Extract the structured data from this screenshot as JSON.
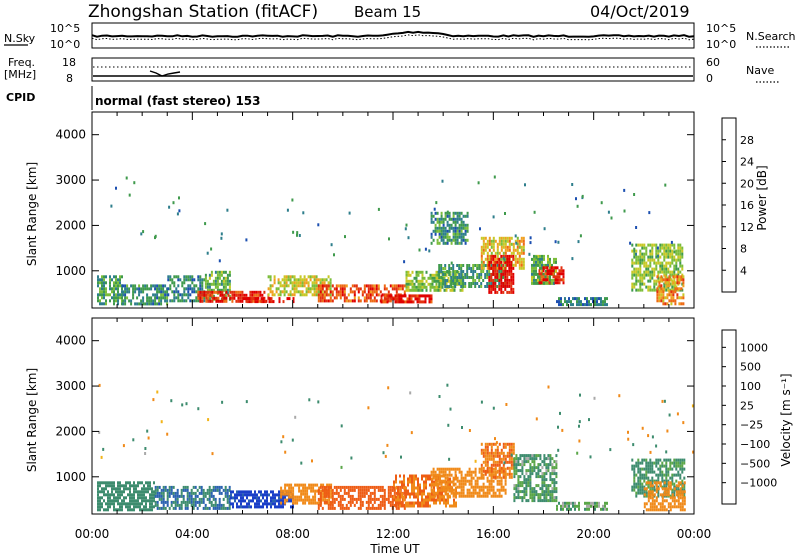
{
  "header": {
    "station": "Zhongshan Station (fitACF)",
    "beam": "Beam 15",
    "date": "04/Oct/2019"
  },
  "strips": {
    "nsky_label": "N.Sky",
    "nsky_ticks": [
      "10^5",
      "10^0"
    ],
    "nsearch_label": "N.Search",
    "freq_label_1": "Freq.",
    "freq_label_2": "[MHz]",
    "freq_ticks": [
      "18",
      "8"
    ],
    "nave_label": "Nave",
    "nave_ticks": [
      "60",
      "0"
    ],
    "cpid_label": "CPID",
    "cpid_text": "normal (fast stereo) 153"
  },
  "colors": {
    "power_scale": [
      "#1010ee",
      "#1c4fb0",
      "#2e7e8c",
      "#3f9a4c",
      "#7bbd3a",
      "#c8c826",
      "#f0a020",
      "#ee6a14",
      "#e23010",
      "#e00000"
    ],
    "velocity_scale": [
      "#1a3fc8",
      "#2a62b0",
      "#3d8c6e",
      "#5aa648",
      "#a9a9a9",
      "#f2b418",
      "#f08a1a",
      "#ee5c14",
      "#e02a0c"
    ]
  },
  "chart_data": [
    {
      "type": "heatmap",
      "name": "power",
      "xlabel": "Time UT",
      "ylabel": "Slant Range [km]",
      "x_ticks": [
        "00:00",
        "04:00",
        "08:00",
        "12:00",
        "16:00",
        "20:00",
        "00:00"
      ],
      "y_ticks": [
        1000,
        2000,
        3000,
        4000
      ],
      "ylim": [
        180,
        4500
      ],
      "colorbar_label": "Power [dB]",
      "colorbar_ticks": [
        28,
        24,
        20,
        16,
        12,
        8,
        4
      ],
      "colorbar_range": [
        0,
        30
      ],
      "patches": [
        {
          "t": [
            0.2,
            1.2
          ],
          "r": [
            300,
            900
          ],
          "v": 10
        },
        {
          "t": [
            1.2,
            3.0
          ],
          "r": [
            300,
            700
          ],
          "v": 9
        },
        {
          "t": [
            3.0,
            4.5
          ],
          "r": [
            320,
            900
          ],
          "v": 8
        },
        {
          "t": [
            4.5,
            5.5
          ],
          "r": [
            350,
            1000
          ],
          "v": 12
        },
        {
          "t": [
            4.2,
            7.0
          ],
          "r": [
            300,
            560
          ],
          "v": 26
        },
        {
          "t": [
            6.0,
            8.0
          ],
          "r": [
            300,
            420
          ],
          "v": 28
        },
        {
          "t": [
            7.0,
            9.5
          ],
          "r": [
            480,
            900
          ],
          "v": 16
        },
        {
          "t": [
            9.0,
            12.5
          ],
          "r": [
            330,
            700
          ],
          "v": 24
        },
        {
          "t": [
            11.5,
            13.5
          ],
          "r": [
            300,
            480
          ],
          "v": 27
        },
        {
          "t": [
            12.5,
            14.8
          ],
          "r": [
            600,
            1000
          ],
          "v": 14
        },
        {
          "t": [
            13.8,
            16.5
          ],
          "r": [
            650,
            1150
          ],
          "v": 10
        },
        {
          "t": [
            13.5,
            15.0
          ],
          "r": [
            1600,
            2300
          ],
          "v": 9
        },
        {
          "t": [
            15.5,
            17.2
          ],
          "r": [
            1050,
            1750
          ],
          "v": 18
        },
        {
          "t": [
            15.8,
            16.8
          ],
          "r": [
            550,
            1350
          ],
          "v": 29
        },
        {
          "t": [
            17.5,
            18.5
          ],
          "r": [
            700,
            1350
          ],
          "v": 12
        },
        {
          "t": [
            17.8,
            18.8
          ],
          "r": [
            750,
            1100
          ],
          "v": 27
        },
        {
          "t": [
            18.5,
            20.5
          ],
          "r": [
            280,
            420
          ],
          "v": 8
        },
        {
          "t": [
            21.5,
            23.5
          ],
          "r": [
            550,
            1600
          ],
          "v": 14
        },
        {
          "t": [
            22.5,
            23.6
          ],
          "r": [
            300,
            900
          ],
          "v": 21
        }
      ]
    },
    {
      "type": "heatmap",
      "name": "velocity",
      "xlabel": "Time UT",
      "ylabel": "Slant Range [km]",
      "x_ticks": [
        "00:00",
        "04:00",
        "08:00",
        "12:00",
        "16:00",
        "20:00",
        "00:00"
      ],
      "y_ticks": [
        1000,
        2000,
        3000,
        4000
      ],
      "ylim": [
        180,
        4500
      ],
      "colorbar_label": "Velocity [m s⁻¹]",
      "colorbar_ticks": [
        "1000",
        "500",
        "100",
        "25",
        "−25",
        "−100",
        "−500",
        "−1000"
      ],
      "patches": [
        {
          "t": [
            0.2,
            2.5
          ],
          "r": [
            300,
            900
          ],
          "v": 100
        },
        {
          "t": [
            2.5,
            5.5
          ],
          "r": [
            300,
            800
          ],
          "v": 300
        },
        {
          "t": [
            5.5,
            8.0
          ],
          "r": [
            330,
            700
          ],
          "v": 1000
        },
        {
          "t": [
            7.5,
            9.5
          ],
          "r": [
            450,
            850
          ],
          "v": -100
        },
        {
          "t": [
            9.0,
            12.5
          ],
          "r": [
            300,
            800
          ],
          "v": -500
        },
        {
          "t": [
            12.0,
            14.5
          ],
          "r": [
            350,
            1050
          ],
          "v": -300
        },
        {
          "t": [
            13.5,
            16.5
          ],
          "r": [
            600,
            1200
          ],
          "v": -100
        },
        {
          "t": [
            15.5,
            16.8
          ],
          "r": [
            1000,
            1750
          ],
          "v": -300
        },
        {
          "t": [
            16.8,
            18.5
          ],
          "r": [
            450,
            1500
          ],
          "v": 60
        },
        {
          "t": [
            18.5,
            20.5
          ],
          "r": [
            300,
            450
          ],
          "v": 40
        },
        {
          "t": [
            21.5,
            23.6
          ],
          "r": [
            600,
            1400
          ],
          "v": 80
        },
        {
          "t": [
            22.0,
            23.6
          ],
          "r": [
            300,
            900
          ],
          "v": -200
        }
      ]
    }
  ]
}
